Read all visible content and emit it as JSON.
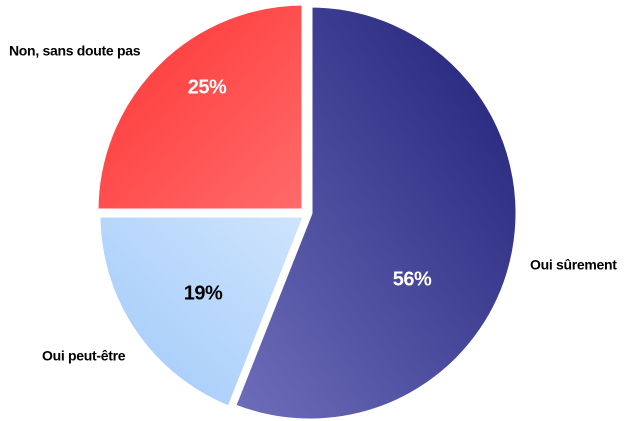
{
  "chart_data": {
    "type": "pie",
    "slices": [
      {
        "label": "Oui sûrement",
        "value": 56,
        "value_label": "56%",
        "color_dark": "#1F2077",
        "color_light": "#6E6EBB",
        "text_color": "#FFFFFF"
      },
      {
        "label": "Oui peut-être",
        "value": 19,
        "value_label": "19%",
        "color_dark": "#9FC9FA",
        "color_light": "#CFE4FD",
        "text_color": "#000000"
      },
      {
        "label": "Non, sans doute pas",
        "value": 25,
        "value_label": "25%",
        "color_dark": "#FF3333",
        "color_light": "#FF6B6B",
        "text_color": "#FFFFFF"
      }
    ]
  }
}
